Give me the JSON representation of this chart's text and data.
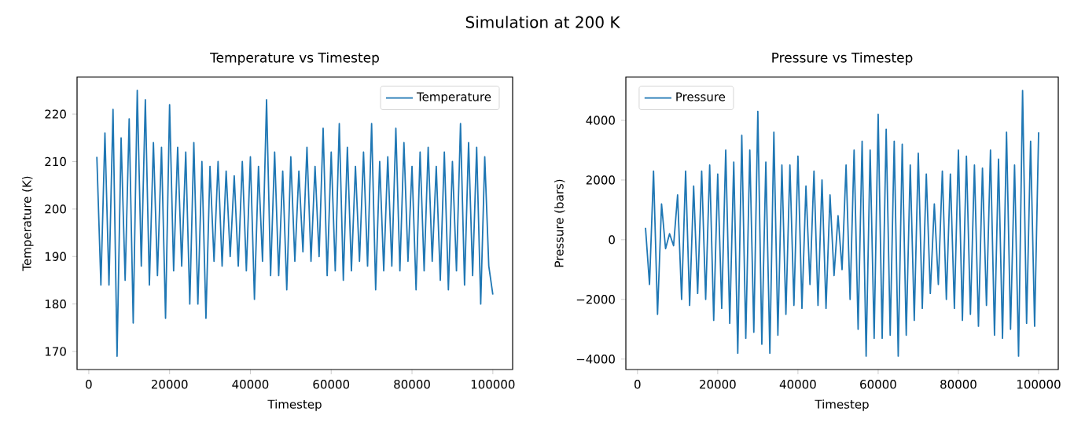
{
  "chart_data": [
    {
      "type": "line",
      "title": "Temperature vs Timestep",
      "xlabel": "Timestep",
      "ylabel": "Temperature (K)",
      "annotations": [
        "Simulation at 200 K"
      ],
      "legend": "top right",
      "xlim": [
        -2900,
        104900
      ],
      "ylim": [
        166.2,
        227.8
      ],
      "xticks": [
        0,
        20000,
        40000,
        60000,
        80000,
        100000
      ],
      "yticks": [
        170,
        180,
        190,
        200,
        210,
        220
      ],
      "x": [
        2000,
        3000,
        4000,
        5000,
        6000,
        7000,
        8000,
        9000,
        10000,
        11000,
        12000,
        13000,
        14000,
        15000,
        16000,
        17000,
        18000,
        19000,
        20000,
        21000,
        22000,
        23000,
        24000,
        25000,
        26000,
        27000,
        28000,
        29000,
        30000,
        31000,
        32000,
        33000,
        34000,
        35000,
        36000,
        37000,
        38000,
        39000,
        40000,
        41000,
        42000,
        43000,
        44000,
        45000,
        46000,
        47000,
        48000,
        49000,
        50000,
        51000,
        52000,
        53000,
        54000,
        55000,
        56000,
        57000,
        58000,
        59000,
        60000,
        61000,
        62000,
        63000,
        64000,
        65000,
        66000,
        67000,
        68000,
        69000,
        70000,
        71000,
        72000,
        73000,
        74000,
        75000,
        76000,
        77000,
        78000,
        79000,
        80000,
        81000,
        82000,
        83000,
        84000,
        85000,
        86000,
        87000,
        88000,
        89000,
        90000,
        91000,
        92000,
        93000,
        94000,
        95000,
        96000,
        97000,
        98000,
        99000,
        100000
      ],
      "series": [
        {
          "name": "Temperature",
          "color": "#1f77b4",
          "values": [
            211,
            184,
            216,
            184,
            221,
            169,
            215,
            185,
            219,
            176,
            225,
            188,
            223,
            184,
            214,
            186,
            213,
            177,
            222,
            187,
            213,
            188,
            212,
            180,
            214,
            180,
            210,
            177,
            209,
            189,
            210,
            188,
            208,
            190,
            207,
            188,
            210,
            187,
            211,
            181,
            209,
            189,
            223,
            186,
            212,
            186,
            208,
            183,
            211,
            189,
            208,
            191,
            213,
            189,
            209,
            190,
            217,
            186,
            212,
            187,
            218,
            185,
            213,
            187,
            209,
            189,
            212,
            188,
            218,
            183,
            210,
            187,
            211,
            188,
            217,
            187,
            214,
            189,
            209,
            183,
            212,
            187,
            213,
            189,
            209,
            185,
            212,
            183,
            210,
            187,
            218,
            184,
            214,
            186,
            213,
            180,
            211,
            188,
            182
          ]
        }
      ]
    },
    {
      "type": "line",
      "title": "Pressure vs Timestep",
      "xlabel": "Timestep",
      "ylabel": "Pressure (bars)",
      "legend": "top left",
      "xlim": [
        -2900,
        104900
      ],
      "ylim": [
        -4350,
        5450
      ],
      "xticks": [
        0,
        20000,
        40000,
        60000,
        80000,
        100000
      ],
      "yticks": [
        {
          "value": -4000,
          "label": "−4000"
        },
        {
          "value": -2000,
          "label": "−2000"
        },
        0,
        2000,
        4000
      ],
      "x": [
        2000,
        3000,
        4000,
        5000,
        6000,
        7000,
        8000,
        9000,
        10000,
        11000,
        12000,
        13000,
        14000,
        15000,
        16000,
        17000,
        18000,
        19000,
        20000,
        21000,
        22000,
        23000,
        24000,
        25000,
        26000,
        27000,
        28000,
        29000,
        30000,
        31000,
        32000,
        33000,
        34000,
        35000,
        36000,
        37000,
        38000,
        39000,
        40000,
        41000,
        42000,
        43000,
        44000,
        45000,
        46000,
        47000,
        48000,
        49000,
        50000,
        51000,
        52000,
        53000,
        54000,
        55000,
        56000,
        57000,
        58000,
        59000,
        60000,
        61000,
        62000,
        63000,
        64000,
        65000,
        66000,
        67000,
        68000,
        69000,
        70000,
        71000,
        72000,
        73000,
        74000,
        75000,
        76000,
        77000,
        78000,
        79000,
        80000,
        81000,
        82000,
        83000,
        84000,
        85000,
        86000,
        87000,
        88000,
        89000,
        90000,
        91000,
        92000,
        93000,
        94000,
        95000,
        96000,
        97000,
        98000,
        99000,
        100000
      ],
      "series": [
        {
          "name": "Pressure",
          "color": "#1f77b4",
          "values": [
            400,
            -1500,
            2300,
            -2500,
            1200,
            -300,
            200,
            -200,
            1500,
            -2000,
            2300,
            -2200,
            1800,
            -1800,
            2300,
            -2000,
            2500,
            -2700,
            2200,
            -2300,
            3000,
            -2800,
            2600,
            -3800,
            3500,
            -3300,
            3000,
            -3100,
            4300,
            -3500,
            2600,
            -3800,
            3600,
            -3200,
            2500,
            -2500,
            2500,
            -2200,
            2800,
            -2300,
            1800,
            -1500,
            2300,
            -2200,
            2000,
            -2300,
            1500,
            -1200,
            800,
            -1000,
            2500,
            -2000,
            3000,
            -3000,
            3300,
            -3900,
            3000,
            -3300,
            4200,
            -3300,
            3700,
            -3200,
            3300,
            -3900,
            3200,
            -3200,
            2500,
            -2700,
            2900,
            -2300,
            2200,
            -1800,
            1200,
            -1500,
            2300,
            -2000,
            2200,
            -2300,
            3000,
            -2700,
            2800,
            -2500,
            2500,
            -2900,
            2400,
            -2200,
            3000,
            -3200,
            2700,
            -3300,
            3600,
            -3000,
            2500,
            -3900,
            5000,
            -2800,
            3300,
            -2900,
            3600
          ]
        }
      ]
    }
  ]
}
